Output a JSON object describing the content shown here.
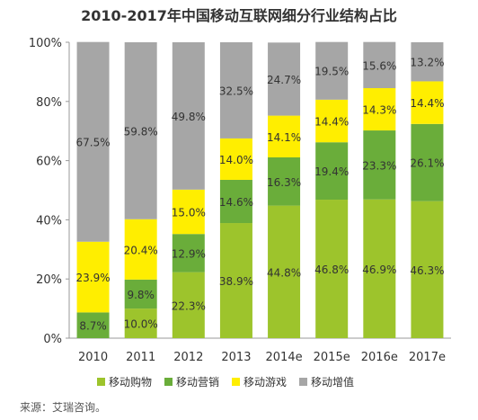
{
  "chart_data": {
    "type": "bar",
    "stacked": true,
    "title": "2010-2017年中国移动互联网细分行业结构占比",
    "categories": [
      "2010",
      "2011",
      "2012",
      "2013",
      "2014e",
      "2015e",
      "2016e",
      "2017e"
    ],
    "ylim": [
      0,
      100
    ],
    "yticks": [
      "0%",
      "20%",
      "40%",
      "60%",
      "80%",
      "100%"
    ],
    "ytick_values": [
      0,
      20,
      40,
      60,
      80,
      100
    ],
    "grid": false,
    "legend_position": "bottom",
    "series": [
      {
        "name": "移动购物",
        "color": "#9dc42c",
        "values": [
          0,
          10.0,
          22.3,
          38.9,
          44.8,
          46.8,
          46.9,
          46.3
        ],
        "labels": [
          "",
          "10.0%",
          "22.3%",
          "38.9%",
          "44.8%",
          "46.8%",
          "46.9%",
          "46.3%"
        ]
      },
      {
        "name": "移动营销",
        "color": "#6aad3a",
        "values": [
          8.7,
          9.8,
          12.9,
          14.6,
          16.3,
          19.4,
          23.3,
          26.1
        ],
        "labels": [
          "8.7%",
          "9.8%",
          "12.9%",
          "14.6%",
          "16.3%",
          "19.4%",
          "23.3%",
          "26.1%"
        ]
      },
      {
        "name": "移动游戏",
        "color": "#ffee00",
        "values": [
          23.9,
          20.4,
          15.0,
          14.0,
          14.1,
          14.4,
          14.3,
          14.4
        ],
        "labels": [
          "23.9%",
          "20.4%",
          "15.0%",
          "14.0%",
          "14.1%",
          "14.4%",
          "14.3%",
          "14.4%"
        ]
      },
      {
        "name": "移动增值",
        "color": "#a6a6a6",
        "values": [
          67.5,
          59.8,
          49.8,
          32.5,
          24.7,
          19.5,
          15.6,
          13.2
        ],
        "labels": [
          "67.5%",
          "59.8%",
          "49.8%",
          "32.5%",
          "24.7%",
          "19.5%",
          "15.6%",
          "13.2%"
        ]
      }
    ]
  },
  "source": "来源：艾瑞咨询。"
}
